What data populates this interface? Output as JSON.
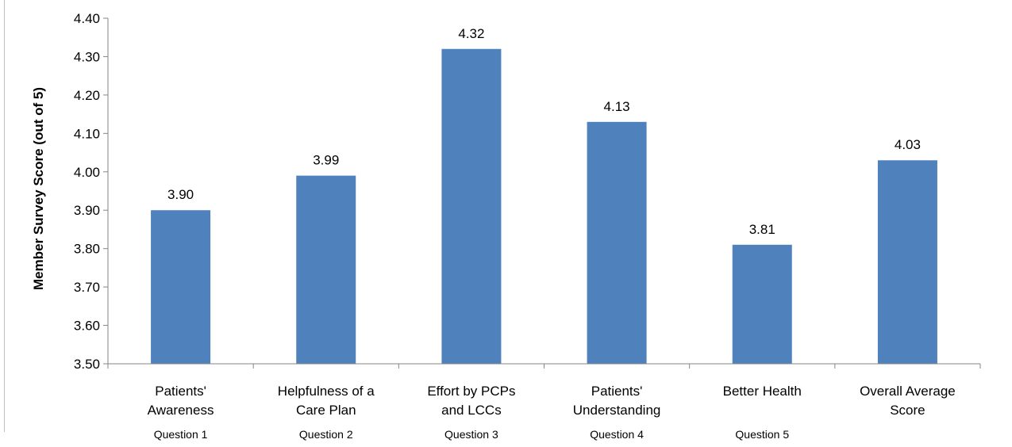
{
  "chart_data": {
    "type": "bar",
    "title": "",
    "xlabel": "",
    "ylabel": "Member Survey Score  (out of 5)",
    "ylim": [
      3.5,
      4.4
    ],
    "yticks": [
      "3.50",
      "3.60",
      "3.70",
      "3.80",
      "3.90",
      "4.00",
      "4.10",
      "4.20",
      "4.30",
      "4.40"
    ],
    "grid": false,
    "legend": "none",
    "bar_color": "#4f81bd",
    "categories": [
      {
        "lines": [
          "Patients'",
          "Awareness"
        ],
        "sub": "Question 1"
      },
      {
        "lines": [
          "Helpfulness of a",
          "Care Plan"
        ],
        "sub": "Question 2"
      },
      {
        "lines": [
          "Effort by PCPs",
          "and LCCs"
        ],
        "sub": "Question 3"
      },
      {
        "lines": [
          "Patients'",
          "Understanding"
        ],
        "sub": "Question 4"
      },
      {
        "lines": [
          "Better Health"
        ],
        "sub": "Question 5"
      },
      {
        "lines": [
          "Overall Average",
          "Score"
        ],
        "sub": ""
      }
    ],
    "values": [
      3.9,
      3.99,
      4.32,
      4.13,
      3.81,
      4.03
    ],
    "data_labels": [
      "3.90",
      "3.99",
      "4.32",
      "4.13",
      "3.81",
      "4.03"
    ]
  }
}
